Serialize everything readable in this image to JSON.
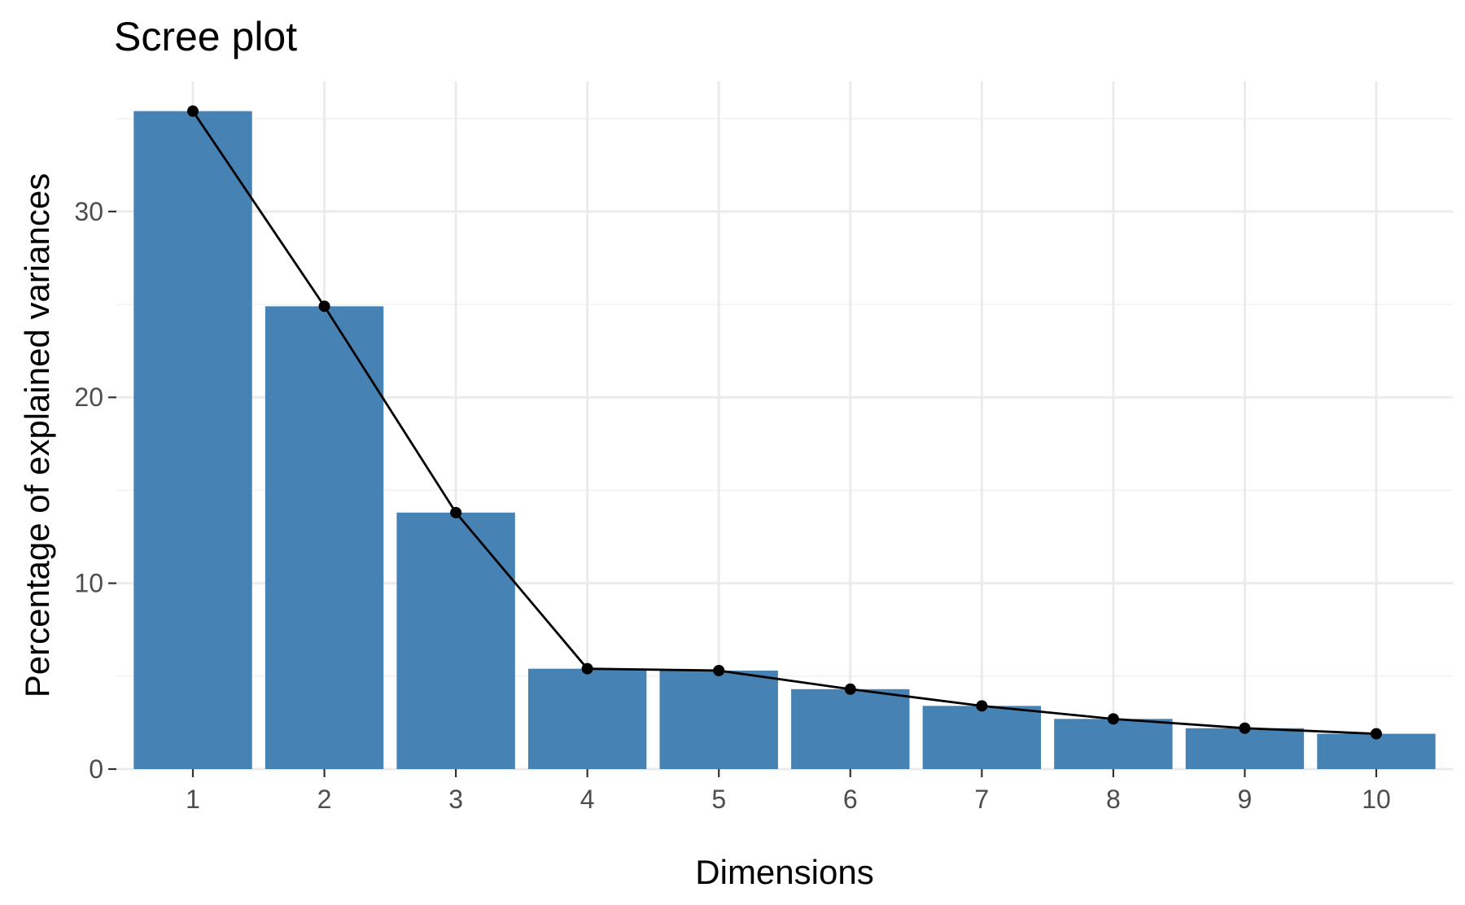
{
  "chart_data": {
    "type": "bar",
    "title": "Scree plot",
    "xlabel": "Dimensions",
    "ylabel": "Percentage of explained variances",
    "categories": [
      "1",
      "2",
      "3",
      "4",
      "5",
      "6",
      "7",
      "8",
      "9",
      "10"
    ],
    "values": [
      35.4,
      24.9,
      13.8,
      5.4,
      5.3,
      4.3,
      3.4,
      2.7,
      2.2,
      1.9
    ],
    "ylim": [
      0,
      37
    ],
    "yticks": [
      0,
      10,
      20,
      30
    ],
    "grid": true,
    "bar_color": "#4682B4",
    "line_color": "#000000",
    "overlay": "line with points connecting bar tops"
  }
}
